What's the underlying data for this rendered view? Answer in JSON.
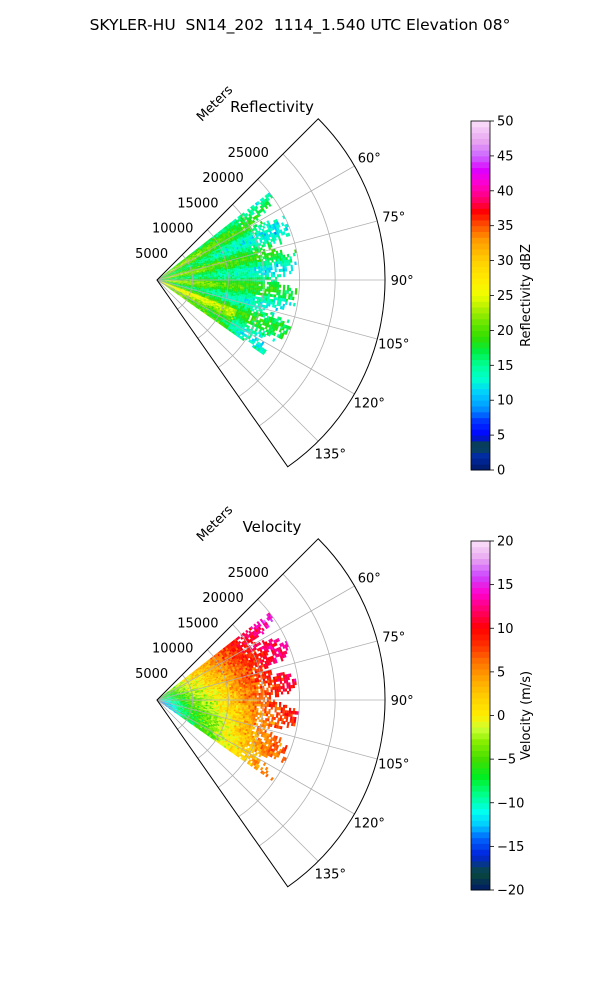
{
  "figure": {
    "title": "SKYLER-HU  SN14_202  1114_1.540 UTC Elevation 08°"
  },
  "chart_data": [
    {
      "type": "heatmap",
      "projection": "polar-sector",
      "title": "Reflectivity",
      "radial_axis_label": "Meters",
      "radial_range": [
        0,
        32000
      ],
      "radial_ticks": [
        5000,
        10000,
        15000,
        20000,
        25000
      ],
      "radial_tick_labels": [
        "5000",
        "10000",
        "15000",
        "20000",
        "25000"
      ],
      "angle_range_deg": [
        45,
        145
      ],
      "angle_ticks_deg": [
        60,
        75,
        90,
        105,
        120,
        135
      ],
      "angle_tick_labels": [
        "60°",
        "75°",
        "90°",
        "105°",
        "120°",
        "135°"
      ],
      "grid": true,
      "data_extent": {
        "radial_max_m": 20000,
        "angle_deg": [
          52,
          125
        ]
      },
      "field_profile": [
        {
          "range_m": 2000,
          "value": 20
        },
        {
          "range_m": 6000,
          "value": 19
        },
        {
          "range_m": 10000,
          "value": 17
        },
        {
          "range_m": 14000,
          "value": 16
        },
        {
          "range_m": 18000,
          "value": 15
        }
      ],
      "colorbar": {
        "label": "Reflectivity dBZ",
        "vmin": 0,
        "vmax": 50,
        "ticks": [
          0,
          5,
          10,
          15,
          20,
          25,
          30,
          35,
          40,
          45,
          50
        ],
        "tick_labels": [
          "0",
          "5",
          "10",
          "15",
          "20",
          "25",
          "30",
          "35",
          "40",
          "45",
          "50"
        ]
      }
    },
    {
      "type": "heatmap",
      "projection": "polar-sector",
      "title": "Velocity",
      "radial_axis_label": "Meters",
      "radial_range": [
        0,
        32000
      ],
      "radial_ticks": [
        5000,
        10000,
        15000,
        20000,
        25000
      ],
      "radial_tick_labels": [
        "5000",
        "10000",
        "15000",
        "20000",
        "25000"
      ],
      "angle_range_deg": [
        45,
        145
      ],
      "angle_ticks_deg": [
        60,
        75,
        90,
        105,
        120,
        135
      ],
      "angle_tick_labels": [
        "60°",
        "75°",
        "90°",
        "105°",
        "120°",
        "135°"
      ],
      "grid": true,
      "data_extent": {
        "radial_max_m": 20000,
        "angle_deg": [
          52,
          125
        ]
      },
      "field_profile": [
        {
          "range_m": 1500,
          "value": -8
        },
        {
          "range_m": 5000,
          "value": -2
        },
        {
          "range_m": 9000,
          "value": 2
        },
        {
          "range_m": 13000,
          "value": 7
        },
        {
          "range_m": 17000,
          "value": 10
        },
        {
          "range_m": 20000,
          "value": 13
        }
      ],
      "colorbar": {
        "label": "Velocity (m/s)",
        "vmin": -20,
        "vmax": 20,
        "ticks": [
          -20,
          -15,
          -10,
          -5,
          0,
          5,
          10,
          15,
          20
        ],
        "tick_labels": [
          "−20",
          "−15",
          "−10",
          "−5",
          "0",
          "5",
          "10",
          "15",
          "20"
        ]
      }
    }
  ]
}
